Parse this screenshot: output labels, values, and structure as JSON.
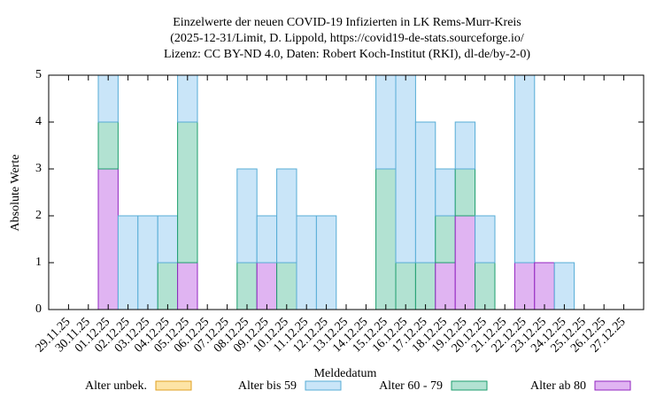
{
  "chart_data": {
    "type": "stacked_bar",
    "title": [
      "Einzelwerte der neuen COVID-19 Infizierten in LK Rems-Murr-Kreis",
      "(2025-12-31/Limit, D. Lippold, https://covid19-de-stats.sourceforge.io/",
      "Lizenz: CC BY-ND 4.0, Daten: Robert Koch-Institut (RKI), dl-de/by-2-0)"
    ],
    "x_label": "Meldedatum",
    "y_label": "Absolute Werte",
    "categories": [
      "29.11.25",
      "30.11.25",
      "01.12.25",
      "02.12.25",
      "03.12.25",
      "04.12.25",
      "05.12.25",
      "06.12.25",
      "07.12.25",
      "08.12.25",
      "09.12.25",
      "10.12.25",
      "11.12.25",
      "12.12.25",
      "13.12.25",
      "14.12.25",
      "15.12.25",
      "16.12.25",
      "17.12.25",
      "18.12.25",
      "19.12.25",
      "20.12.25",
      "21.12.25",
      "22.12.25",
      "23.12.25",
      "24.12.25",
      "25.12.25",
      "26.12.25",
      "27.12.25"
    ],
    "series": [
      {
        "name": "Alter unbek.",
        "color": "#fde4a6",
        "edge_color": "#e0a020",
        "values": [
          0,
          0,
          0,
          0,
          0,
          0,
          0,
          0,
          0,
          0,
          0,
          0,
          0,
          0,
          0,
          0,
          0,
          0,
          0,
          0,
          0,
          0,
          0,
          0,
          0,
          0,
          0,
          0,
          0
        ]
      },
      {
        "name": "Alter bis 59",
        "color": "#c9e5f8",
        "edge_color": "#56acd6",
        "values": [
          0,
          0,
          1,
          2,
          2,
          1,
          1,
          0,
          0,
          2,
          1,
          2,
          2,
          2,
          0,
          0,
          2,
          4,
          3,
          1,
          1,
          1,
          0,
          4,
          0,
          1,
          0,
          0,
          0
        ]
      },
      {
        "name": "Alter 60 - 79",
        "color": "#b2e2d2",
        "edge_color": "#1d9e6e",
        "values": [
          0,
          0,
          1,
          0,
          0,
          1,
          3,
          0,
          0,
          1,
          0,
          1,
          0,
          0,
          0,
          0,
          3,
          1,
          1,
          1,
          1,
          1,
          0,
          0,
          0,
          0,
          0,
          0,
          0
        ]
      },
      {
        "name": "Alter ab 80",
        "color": "#e0b4f2",
        "edge_color": "#9224c0",
        "values": [
          0,
          0,
          3,
          0,
          0,
          0,
          1,
          0,
          0,
          0,
          1,
          0,
          0,
          0,
          0,
          0,
          0,
          0,
          0,
          1,
          2,
          0,
          0,
          1,
          1,
          0,
          0,
          0,
          0
        ]
      }
    ],
    "ylim": [
      0,
      5
    ],
    "yticks": [
      0,
      1,
      2,
      3,
      4,
      5
    ],
    "grid": false,
    "legend": "bottom"
  }
}
